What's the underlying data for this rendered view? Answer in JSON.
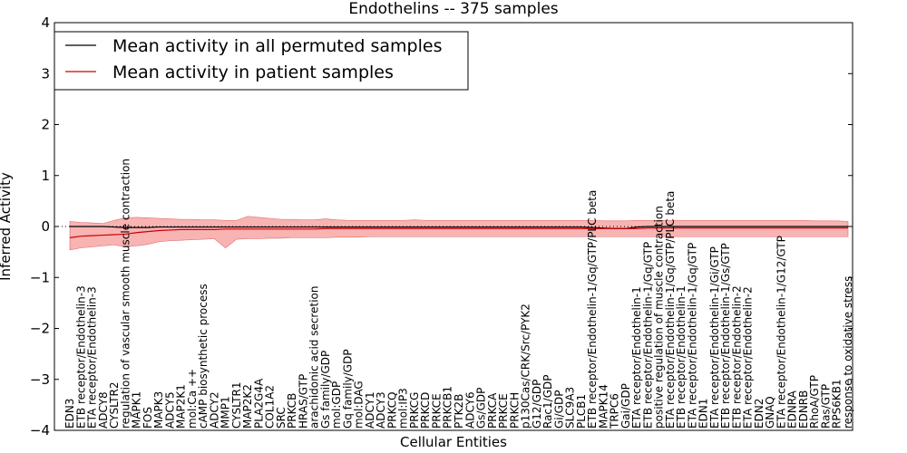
{
  "chart_data": {
    "type": "line",
    "title": "Endothelins -- 375 samples",
    "xlabel": "Cellular Entities",
    "ylabel": "Inferred Activity",
    "ylim": [
      -4,
      4
    ],
    "yticks": [
      "4",
      "3",
      "2",
      "1",
      "0",
      "−1",
      "−2",
      "−3",
      "−4"
    ],
    "grid": false,
    "zero_line": "dotted",
    "legend_position": "top-left",
    "categories": [
      "EDN3",
      "ETB receptor/Endothelin-3",
      "ETA receptor/Endothelin-3",
      "ADCY8",
      "CYSLTR2",
      "regulation of vascular smooth muscle contraction",
      "MAPK1",
      "FOS",
      "MAPK3",
      "ADCY5",
      "MAP2K1",
      "mol:Ca ++",
      "cAMP biosynthetic process",
      "ADCY2",
      "MMP1",
      "CYSLTR1",
      "MAP2K2",
      "PLA2G4A",
      "COL1A2",
      "SRC",
      "PRKCB",
      "HRAS/GTP",
      "arachidonic acid secretion",
      "Gs family/GDP",
      "mol:GDP",
      "Gq family/GDP",
      "mol:DAG",
      "ADCY1",
      "ADCY3",
      "PRKCQ",
      "mol:IP3",
      "PRKCG",
      "PRKCD",
      "PRKCE",
      "PRKCB1",
      "PTK2B",
      "ADCY6",
      "Gs/GDP",
      "PRKCA",
      "PRKCE",
      "PRKCH",
      "p130Cas/CRK/Src/PYK2",
      "G12/GDP",
      "Rac1/GDP",
      "Gi/GDP",
      "SLC9A3",
      "PLCB1",
      "ETB receptor/Endothelin-1/Gq/GTP/PLC beta",
      "MAPK14",
      "TRPC6",
      "Gai/GDP",
      "ETA receptor/Endothelin-1",
      "ETB receptor/Endothelin-1/Gq/GTP",
      "positive regulation of muscle contraction",
      "ETA receptor/Endothelin-1/Gq/GTP/PLC beta",
      "ETB receptor/Endothelin-1",
      "ETA receptor/Endothelin-1/Gq/GTP",
      "EDN1",
      "ETA receptor/Endothelin-1/Gi/GTP",
      "ETB receptor/Endothelin-1/Gs/GTP",
      "ETB receptor/Endothelin-2",
      "ETA receptor/Endothelin-2",
      "EDN2",
      "GNAQ",
      "ETA receptor/Endothelin-1/G12/GTP",
      "EDNRA",
      "EDNRB",
      "RhoA/GTP",
      "Ras/GTP",
      "RPS6KB1",
      "response to oxidative stress"
    ],
    "series": [
      {
        "name": "Mean activity in all permuted samples",
        "color": "#000000",
        "values": [
          0.0,
          0.0,
          0.0,
          0.0,
          -0.01,
          -0.02,
          -0.02,
          -0.02,
          -0.01,
          -0.01,
          -0.01,
          -0.01,
          -0.01,
          -0.01,
          -0.01,
          -0.01,
          -0.01,
          -0.01,
          -0.01,
          -0.01,
          -0.01,
          -0.01,
          -0.01,
          -0.01,
          -0.01,
          -0.01,
          -0.01,
          -0.01,
          -0.01,
          -0.01,
          -0.01,
          -0.01,
          -0.01,
          -0.01,
          -0.01,
          -0.01,
          -0.01,
          -0.01,
          -0.01,
          -0.01,
          -0.01,
          -0.01,
          -0.01,
          -0.01,
          -0.01,
          -0.01,
          -0.01,
          -0.02,
          -0.03,
          -0.04,
          -0.04,
          -0.01,
          0.0,
          0.0,
          0.0,
          0.0,
          0.0,
          0.0,
          0.0,
          0.0,
          0.0,
          0.0,
          0.0,
          0.0,
          0.0,
          0.0,
          0.0,
          0.0,
          0.0,
          0.0,
          0.0
        ]
      },
      {
        "name": "Mean activity in patient samples",
        "color": "#cc0000",
        "band_color": "#f7a6a6",
        "values": [
          -0.22,
          -0.19,
          -0.18,
          -0.17,
          -0.16,
          -0.15,
          -0.12,
          -0.1,
          -0.08,
          -0.07,
          -0.06,
          -0.06,
          -0.06,
          -0.06,
          -0.05,
          -0.05,
          -0.05,
          -0.05,
          -0.05,
          -0.05,
          -0.05,
          -0.05,
          -0.05,
          -0.04,
          -0.04,
          -0.04,
          -0.04,
          -0.04,
          -0.04,
          -0.04,
          -0.04,
          -0.04,
          -0.04,
          -0.04,
          -0.04,
          -0.04,
          -0.04,
          -0.04,
          -0.04,
          -0.04,
          -0.04,
          -0.04,
          -0.04,
          -0.04,
          -0.04,
          -0.04,
          -0.04,
          -0.04,
          -0.04,
          -0.04,
          -0.04,
          -0.04,
          -0.03,
          -0.03,
          -0.03,
          -0.03,
          -0.03,
          -0.03,
          -0.03,
          -0.03,
          -0.03,
          -0.03,
          -0.03,
          -0.03,
          -0.03,
          -0.03,
          -0.03,
          -0.03,
          -0.03,
          -0.03,
          -0.03
        ],
        "band_upper": [
          0.1,
          0.08,
          0.07,
          0.06,
          0.12,
          0.17,
          0.18,
          0.17,
          0.16,
          0.15,
          0.14,
          0.14,
          0.13,
          0.13,
          0.12,
          0.12,
          0.2,
          0.18,
          0.16,
          0.14,
          0.14,
          0.13,
          0.13,
          0.15,
          0.13,
          0.12,
          0.12,
          0.12,
          0.12,
          0.12,
          0.12,
          0.13,
          0.12,
          0.12,
          0.12,
          0.12,
          0.12,
          0.12,
          0.12,
          0.12,
          0.12,
          0.12,
          0.12,
          0.12,
          0.12,
          0.12,
          0.12,
          0.12,
          0.11,
          0.11,
          0.11,
          0.12,
          0.12,
          0.12,
          0.12,
          0.12,
          0.12,
          0.12,
          0.12,
          0.12,
          0.12,
          0.12,
          0.12,
          0.12,
          0.12,
          0.12,
          0.12,
          0.11,
          0.11,
          0.11,
          0.1
        ],
        "band_lower": [
          -0.46,
          -0.42,
          -0.4,
          -0.38,
          -0.36,
          -0.4,
          -0.38,
          -0.35,
          -0.3,
          -0.28,
          -0.27,
          -0.26,
          -0.25,
          -0.24,
          -0.42,
          -0.25,
          -0.24,
          -0.24,
          -0.23,
          -0.23,
          -0.22,
          -0.22,
          -0.22,
          -0.22,
          -0.21,
          -0.21,
          -0.21,
          -0.2,
          -0.2,
          -0.2,
          -0.2,
          -0.2,
          -0.2,
          -0.2,
          -0.2,
          -0.2,
          -0.2,
          -0.2,
          -0.2,
          -0.2,
          -0.2,
          -0.2,
          -0.2,
          -0.2,
          -0.2,
          -0.2,
          -0.2,
          -0.2,
          -0.2,
          -0.2,
          -0.2,
          -0.2,
          -0.2,
          -0.2,
          -0.2,
          -0.2,
          -0.2,
          -0.2,
          -0.2,
          -0.2,
          -0.2,
          -0.2,
          -0.2,
          -0.2,
          -0.2,
          -0.2,
          -0.2,
          -0.2,
          -0.2,
          -0.2,
          -0.2
        ]
      }
    ]
  }
}
